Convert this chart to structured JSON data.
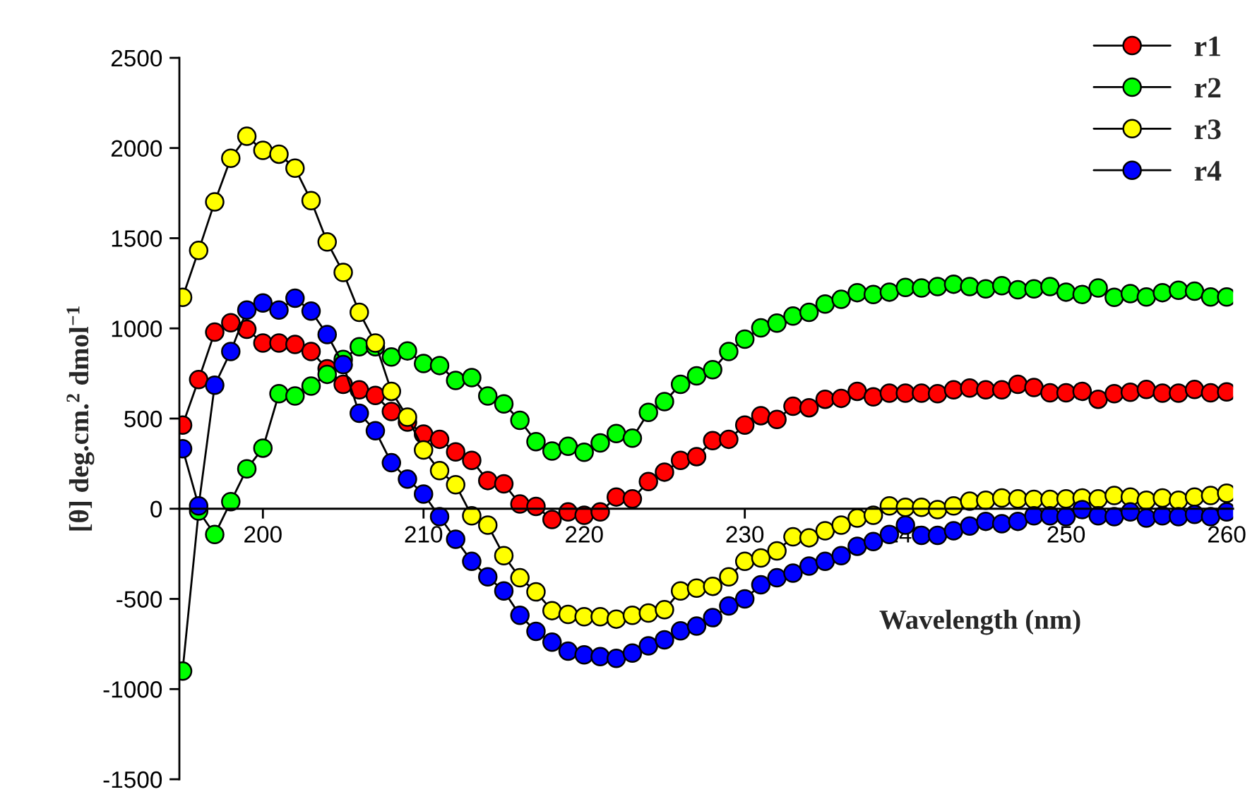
{
  "chart_data": {
    "type": "line",
    "xlabel": "Wavelength (nm)",
    "ylabel": "[θ] deg.cm.$^{2}$ dmol$^{−1}$",
    "x": [
      195,
      196,
      197,
      198,
      199,
      200,
      201,
      202,
      203,
      204,
      205,
      206,
      207,
      208,
      209,
      210,
      211,
      212,
      213,
      214,
      215,
      216,
      217,
      218,
      219,
      220,
      221,
      222,
      223,
      224,
      225,
      226,
      227,
      228,
      229,
      230,
      231,
      232,
      233,
      234,
      235,
      236,
      237,
      238,
      239,
      240,
      241,
      242,
      243,
      244,
      245,
      246,
      247,
      248,
      249,
      250,
      251,
      252,
      253,
      254,
      255,
      256,
      257,
      258,
      259,
      260
    ],
    "series": [
      {
        "name": "r1",
        "color": "#ff0000",
        "values": [
          464,
          716,
          979,
          1031,
          995,
          919,
          919,
          911,
          872,
          776,
          690,
          659,
          628,
          539,
          480,
          414,
          385,
          315,
          268,
          156,
          138,
          26,
          13,
          -60,
          -18,
          -36,
          -18,
          65,
          55,
          151,
          203,
          268,
          289,
          378,
          385,
          464,
          516,
          495,
          568,
          560,
          607,
          612,
          651,
          620,
          641,
          641,
          641,
          638,
          659,
          669,
          659,
          659,
          690,
          672,
          643,
          643,
          651,
          607,
          638,
          646,
          661,
          641,
          641,
          661,
          643,
          648
        ]
      },
      {
        "name": "r2",
        "color": "#00ff00",
        "values": [
          -900,
          -13,
          -143,
          39,
          221,
          336,
          638,
          625,
          680,
          745,
          828,
          898,
          898,
          841,
          875,
          805,
          794,
          711,
          727,
          625,
          581,
          490,
          372,
          320,
          346,
          313,
          365,
          417,
          391,
          534,
          594,
          690,
          737,
          771,
          872,
          940,
          1003,
          1029,
          1068,
          1089,
          1135,
          1161,
          1198,
          1188,
          1201,
          1227,
          1224,
          1232,
          1245,
          1232,
          1219,
          1237,
          1214,
          1219,
          1232,
          1201,
          1188,
          1224,
          1172,
          1193,
          1174,
          1198,
          1211,
          1206,
          1174,
          1174
        ]
      },
      {
        "name": "r3",
        "color": "#ffff00",
        "values": [
          1172,
          1432,
          1701,
          1943,
          2065,
          1987,
          1966,
          1888,
          1708,
          1479,
          1310,
          1089,
          919,
          651,
          508,
          326,
          211,
          133,
          -39,
          -91,
          -260,
          -383,
          -461,
          -565,
          -586,
          -599,
          -599,
          -612,
          -591,
          -578,
          -560,
          -456,
          -440,
          -430,
          -378,
          -292,
          -273,
          -234,
          -156,
          -161,
          -122,
          -91,
          -52,
          -36,
          16,
          8,
          8,
          -5,
          16,
          42,
          47,
          60,
          55,
          52,
          52,
          55,
          60,
          55,
          73,
          65,
          47,
          60,
          47,
          65,
          73,
          86
        ]
      },
      {
        "name": "r4",
        "color": "#0000ff",
        "values": [
          333,
          16,
          685,
          872,
          1102,
          1141,
          1102,
          1167,
          1096,
          966,
          799,
          529,
          432,
          255,
          164,
          81,
          -44,
          -169,
          -292,
          -378,
          -456,
          -591,
          -680,
          -740,
          -790,
          -810,
          -820,
          -830,
          -800,
          -760,
          -727,
          -677,
          -651,
          -604,
          -539,
          -500,
          -422,
          -383,
          -357,
          -318,
          -292,
          -260,
          -208,
          -182,
          -143,
          -91,
          -148,
          -148,
          -122,
          -96,
          -70,
          -83,
          -70,
          -39,
          -39,
          -44,
          -5,
          -39,
          -44,
          -18,
          -52,
          -39,
          -44,
          -31,
          -44,
          -18
        ]
      }
    ],
    "xlim": [
      194.8,
      260.4
    ],
    "ylim": [
      -1500,
      2500
    ],
    "xticks": [
      200,
      210,
      220,
      230,
      240,
      250,
      260
    ],
    "yticks": [
      -1500,
      -1000,
      -500,
      0,
      500,
      1000,
      1500,
      2000,
      2500
    ],
    "marker": "circle",
    "line_style": "solid",
    "legend": "top right",
    "grid": false
  }
}
